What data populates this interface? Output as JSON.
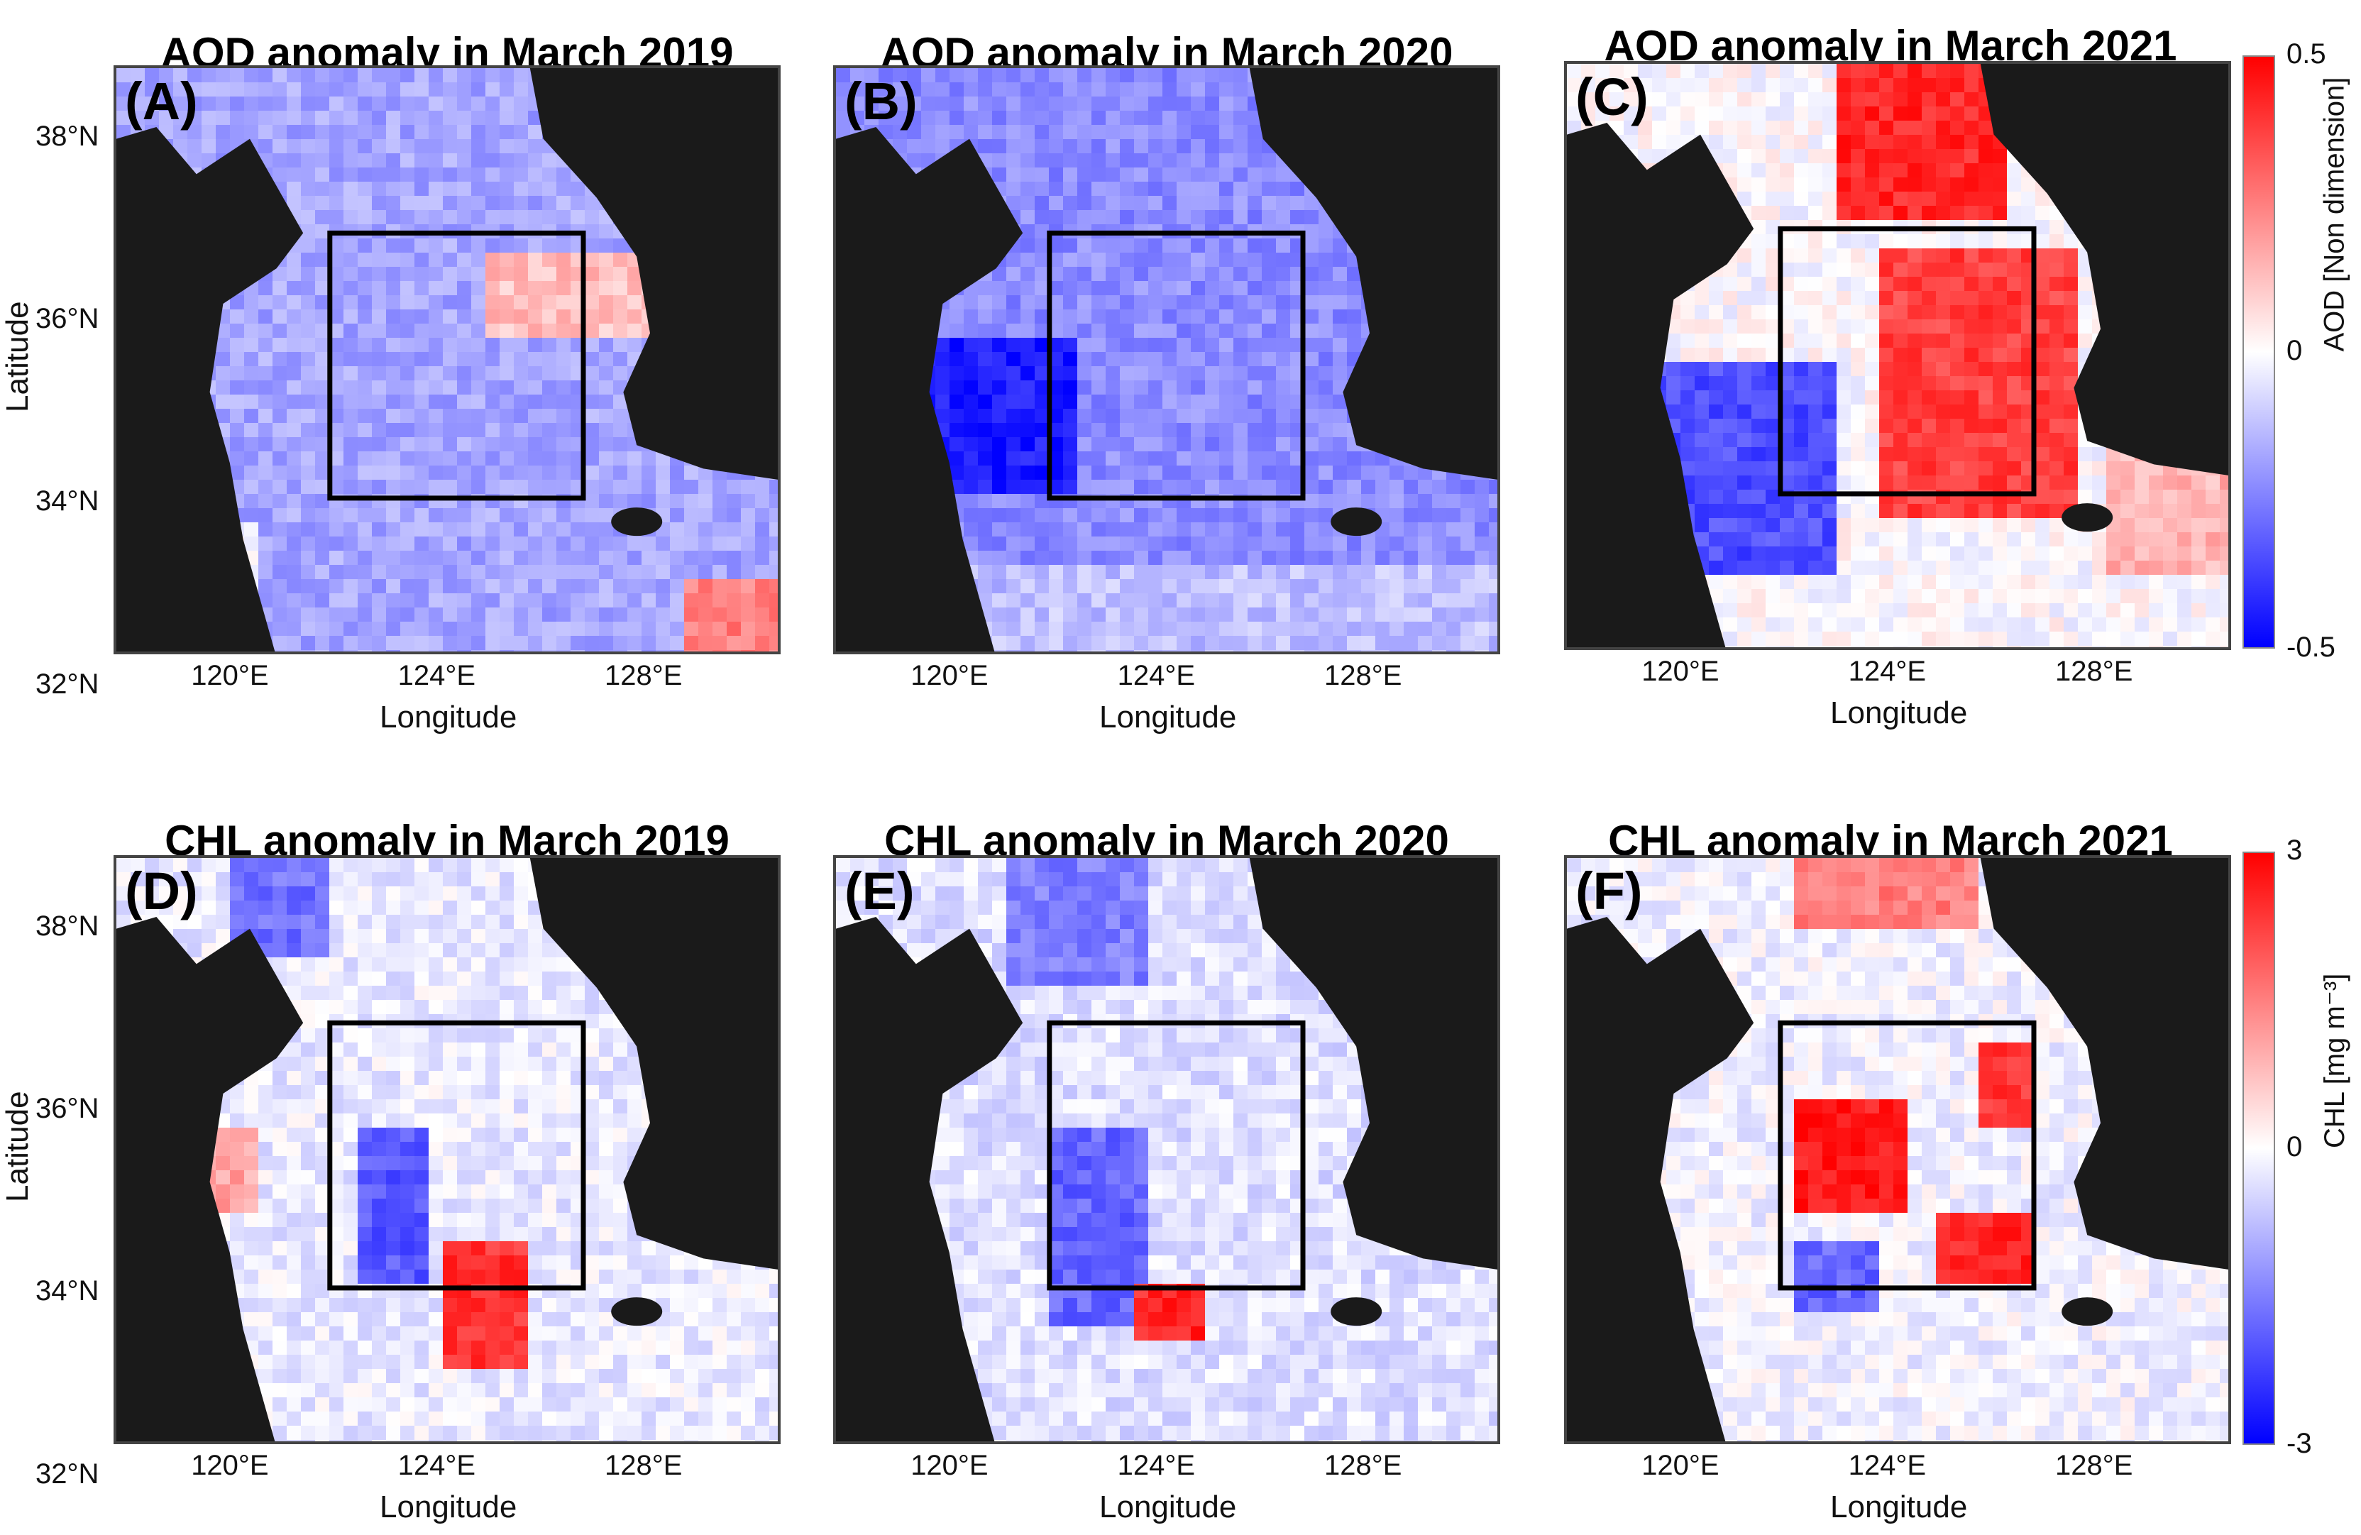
{
  "panels": [
    {
      "label": "(A)",
      "title": "AOD anomaly in March 2019",
      "variable": "AOD",
      "pattern": "aod2019"
    },
    {
      "label": "(B)",
      "title": "AOD anomaly in March 2020",
      "variable": "AOD",
      "pattern": "aod2020"
    },
    {
      "label": "(C)",
      "title": "AOD anomaly in March 2021",
      "variable": "AOD",
      "pattern": "aod2021"
    },
    {
      "label": "(D)",
      "title": "CHL anomaly in March 2019",
      "variable": "CHL",
      "pattern": "chl2019"
    },
    {
      "label": "(E)",
      "title": "CHL anomaly in March 2020",
      "variable": "CHL",
      "pattern": "chl2020"
    },
    {
      "label": "(F)",
      "title": "CHL anomaly in March 2021",
      "variable": "CHL",
      "pattern": "chl2021"
    }
  ],
  "axes": {
    "x_title": "Longitude",
    "y_title": "Latitude",
    "lat_ticks": [
      "38°N",
      "36°N",
      "34°N",
      "32°N"
    ],
    "lon_ticks": [
      "120°E",
      "124°E",
      "128°E"
    ]
  },
  "colorbars": {
    "aod": {
      "label": "AOD [Non dimension]",
      "max": "0.5",
      "mid": "0",
      "min": "-0.5"
    },
    "chl": {
      "label": "CHL [mg m⁻³]",
      "max": "3",
      "mid": "0",
      "min": "-3"
    }
  },
  "colors": {
    "positive": "#ff0000",
    "neutral": "#ffffff",
    "negative": "#0000ff",
    "land": "#1a1a1a"
  }
}
